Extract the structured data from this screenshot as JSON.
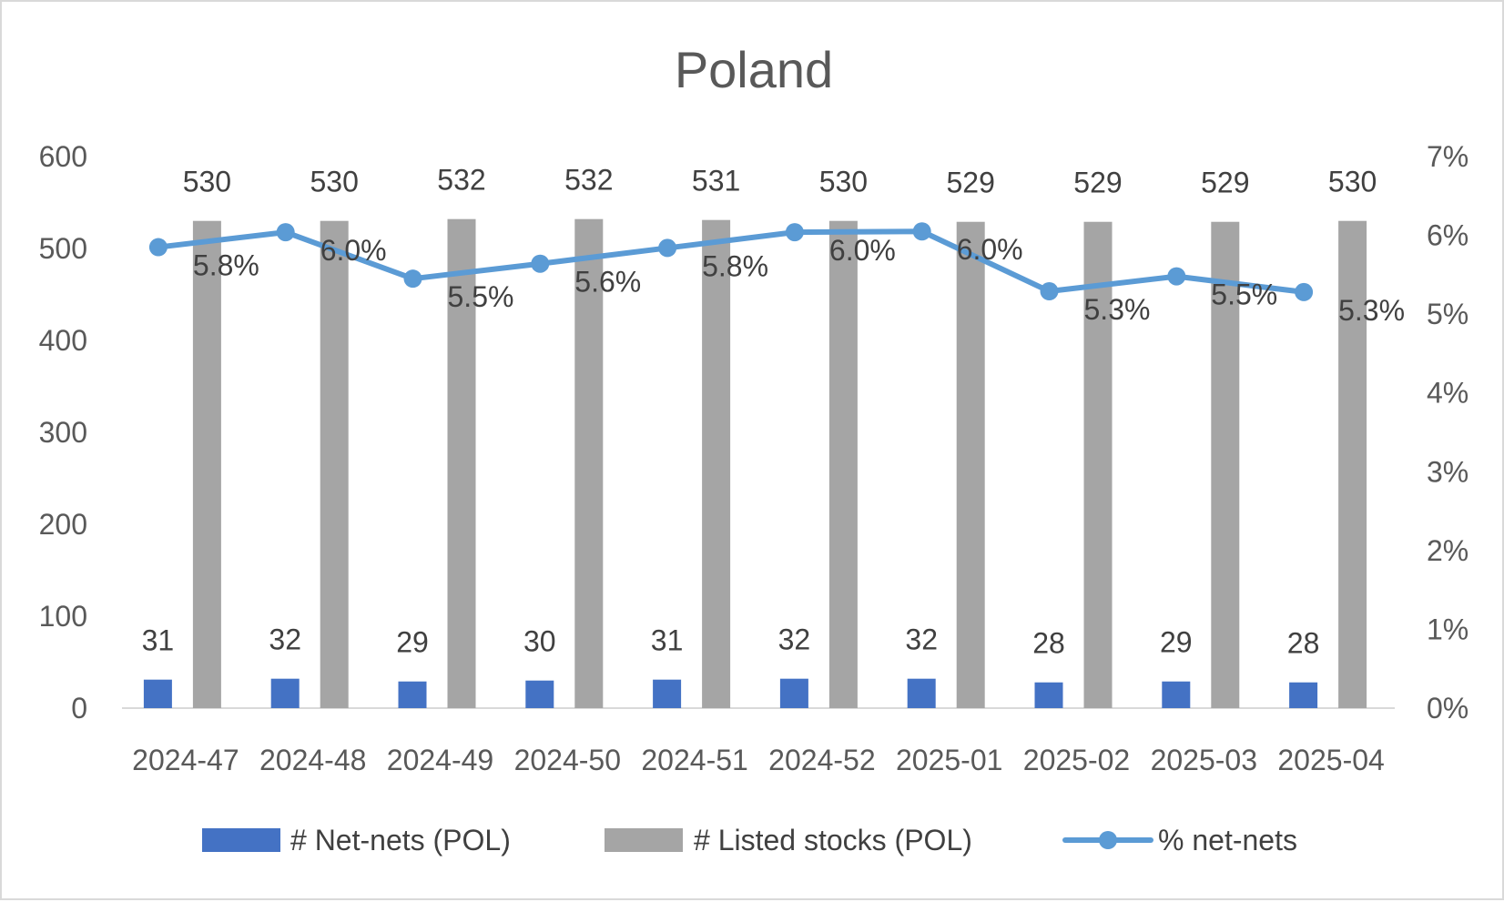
{
  "chart_data": {
    "type": "bar",
    "title": "Poland",
    "categories": [
      "2024-47",
      "2024-48",
      "2024-49",
      "2024-50",
      "2024-51",
      "2024-52",
      "2025-01",
      "2025-02",
      "2025-03",
      "2025-04"
    ],
    "series": [
      {
        "name": "# Net-nets (POL)",
        "type": "bar",
        "axis": "left",
        "color": "#4472c4",
        "values": [
          31,
          32,
          29,
          30,
          31,
          32,
          32,
          28,
          29,
          28
        ],
        "labels": [
          "31",
          "32",
          "29",
          "30",
          "31",
          "32",
          "32",
          "28",
          "29",
          "28"
        ]
      },
      {
        "name": "# Listed stocks (POL)",
        "type": "bar",
        "axis": "left",
        "color": "#a5a5a5",
        "values": [
          530,
          530,
          532,
          532,
          531,
          530,
          529,
          529,
          529,
          530
        ],
        "labels": [
          "530",
          "530",
          "532",
          "532",
          "531",
          "530",
          "529",
          "529",
          "529",
          "530"
        ]
      },
      {
        "name": "% net-nets",
        "type": "line",
        "axis": "right",
        "color": "#5b9bd5",
        "values": [
          5.85,
          6.04,
          5.45,
          5.64,
          5.84,
          6.04,
          6.05,
          5.29,
          5.48,
          5.28
        ],
        "labels": [
          "5.8%",
          "6.0%",
          "5.5%",
          "5.6%",
          "5.8%",
          "6.0%",
          "6.0%",
          "5.3%",
          "5.5%",
          "5.3%"
        ]
      }
    ],
    "y_left": {
      "ylim": [
        0,
        600
      ],
      "ticks": [
        "0",
        "100",
        "200",
        "300",
        "400",
        "500",
        "600"
      ]
    },
    "y_right": {
      "ylim": [
        0,
        7
      ],
      "ticks": [
        "0%",
        "1%",
        "2%",
        "3%",
        "4%",
        "5%",
        "6%",
        "7%"
      ]
    },
    "xlabel": "",
    "ylabel": "",
    "grid": false,
    "legend_position": "bottom"
  }
}
